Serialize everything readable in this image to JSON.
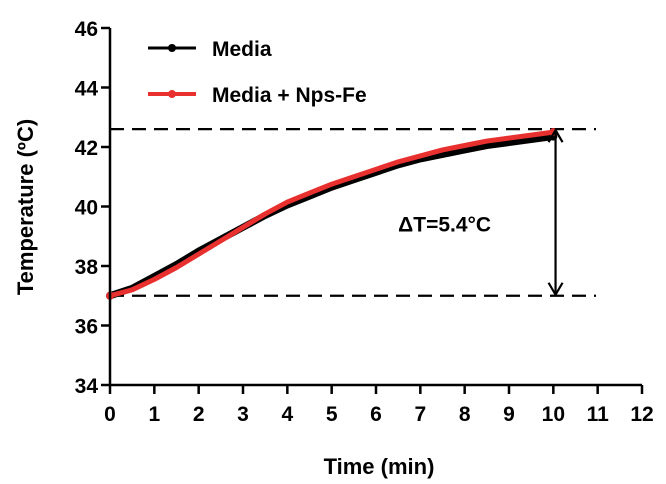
{
  "chart_data": {
    "type": "line",
    "xlabel": "Time (min)",
    "ylabel": "Temperature (ºC)",
    "xlim": [
      0,
      12
    ],
    "ylim": [
      34,
      46
    ],
    "x_ticks": [
      0,
      1,
      2,
      3,
      4,
      5,
      6,
      7,
      8,
      9,
      10,
      11,
      12
    ],
    "y_ticks": [
      34,
      36,
      38,
      40,
      42,
      44,
      46
    ],
    "grid": false,
    "legend_position": "top-left",
    "x": [
      0,
      0.5,
      1,
      1.5,
      2,
      2.5,
      3,
      3.5,
      4,
      4.5,
      5,
      5.5,
      6,
      6.5,
      7,
      7.5,
      8,
      8.5,
      9,
      9.5,
      10
    ],
    "series": [
      {
        "name": "Media",
        "color": "#000000",
        "values": [
          37.0,
          37.25,
          37.65,
          38.05,
          38.5,
          38.9,
          39.3,
          39.7,
          40.05,
          40.35,
          40.65,
          40.9,
          41.15,
          41.4,
          41.6,
          41.75,
          41.9,
          42.05,
          42.15,
          42.25,
          42.35
        ]
      },
      {
        "name": "Media + Nps-Fe",
        "color": "#e8302f",
        "values": [
          37.0,
          37.2,
          37.55,
          37.95,
          38.4,
          38.85,
          39.3,
          39.75,
          40.15,
          40.45,
          40.75,
          41.0,
          41.25,
          41.5,
          41.7,
          41.9,
          42.05,
          42.2,
          42.3,
          42.4,
          42.5
        ]
      }
    ],
    "reference_lines": [
      {
        "y": 37.0
      },
      {
        "y": 42.6
      }
    ],
    "annotation": {
      "text": "ΔT=5.4°C",
      "arrow_x": 10.05,
      "arrow_from": 37.0,
      "arrow_to": 42.6,
      "anchor_x": 6.5,
      "anchor_y": 39.4
    }
  }
}
